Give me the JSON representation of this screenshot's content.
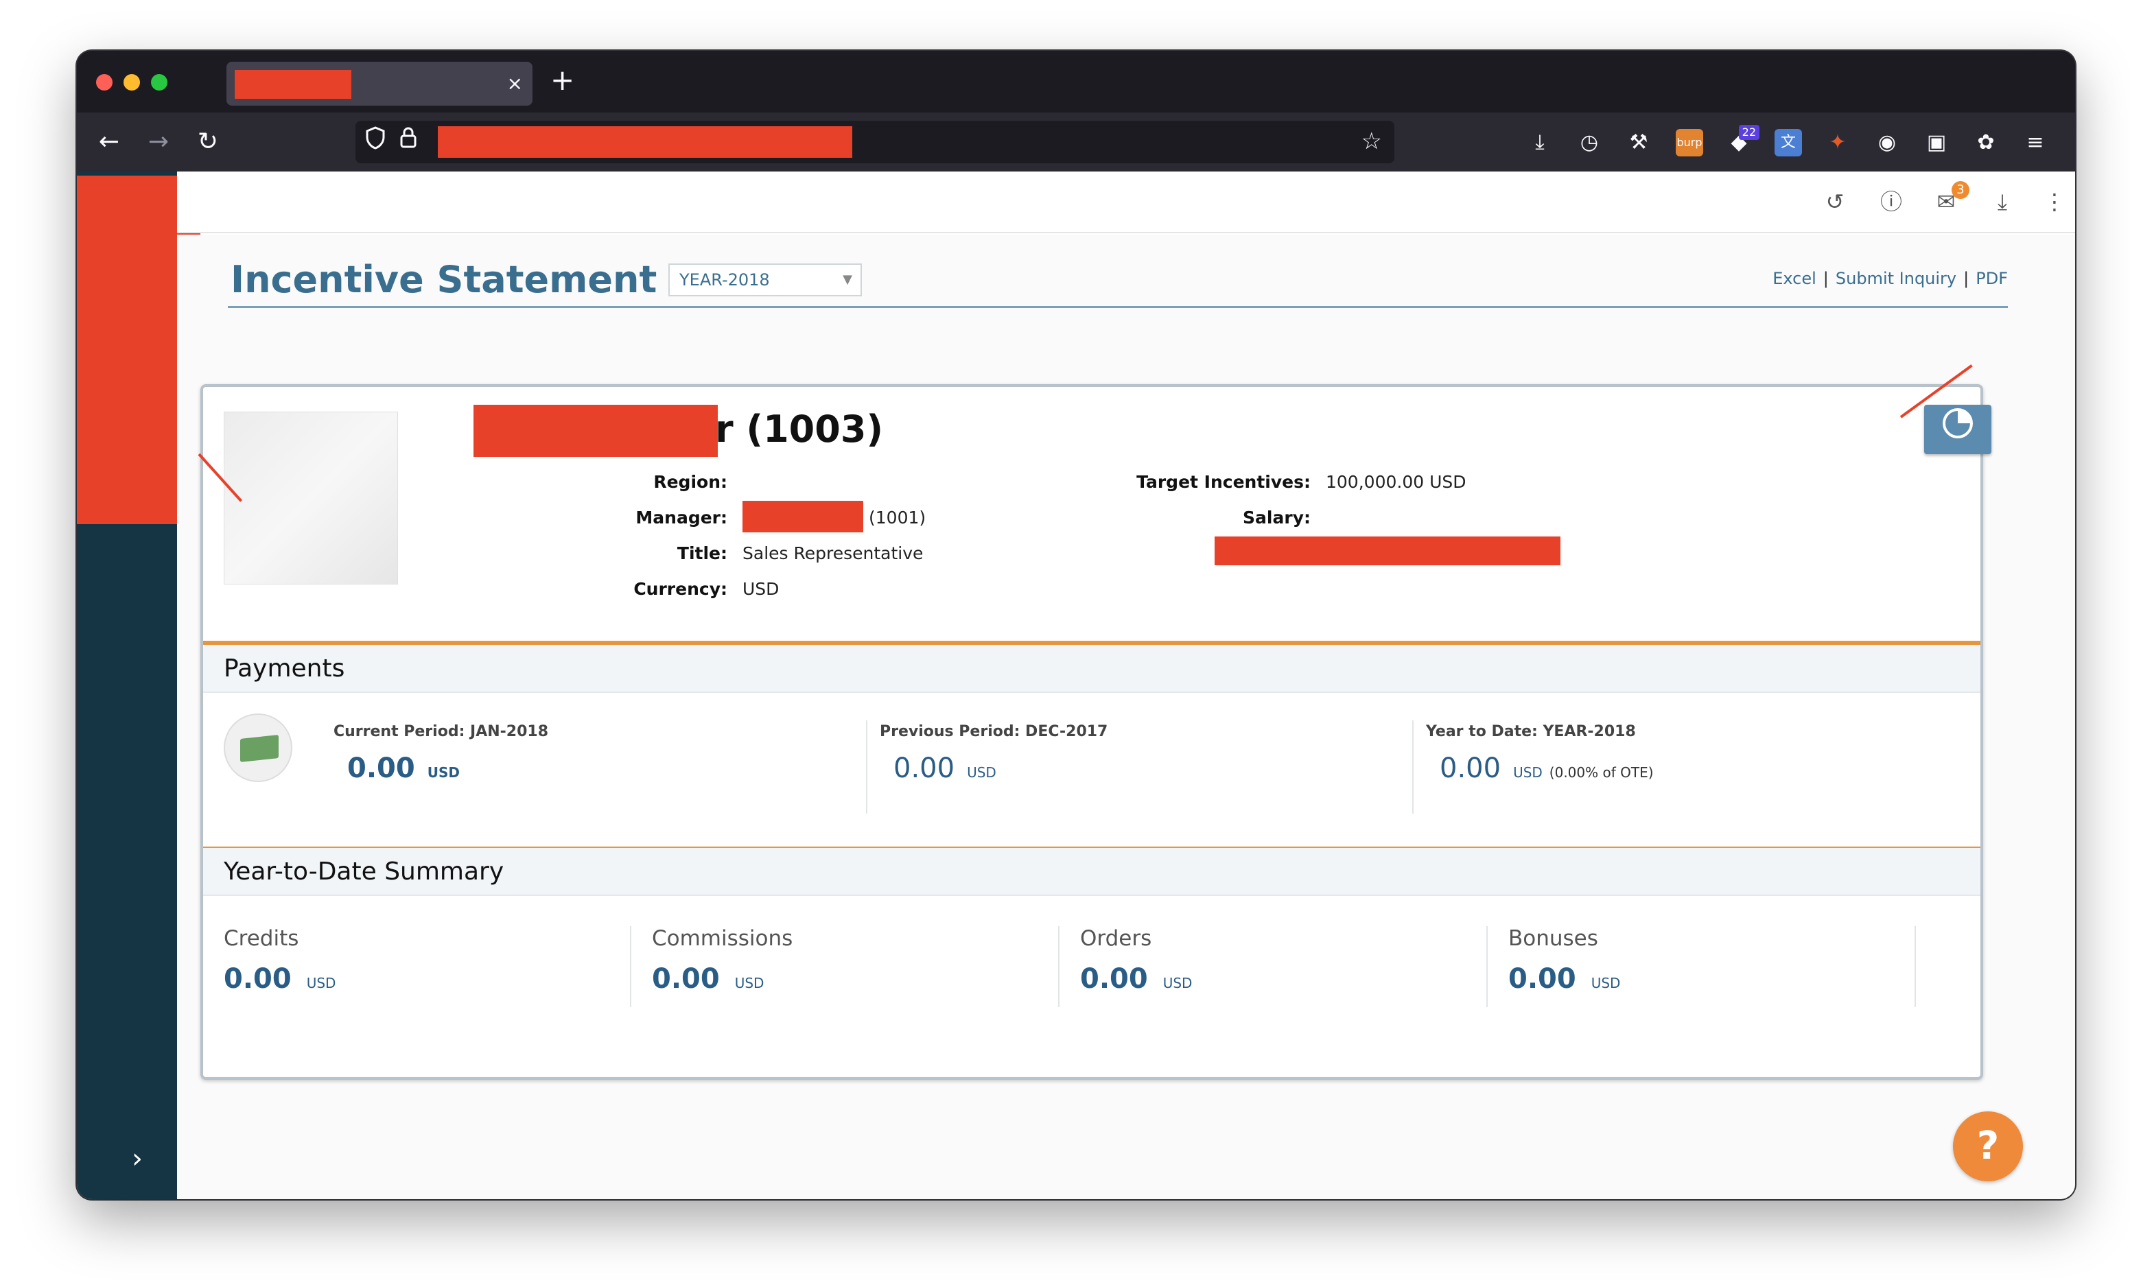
{
  "browser": {
    "new_tab": "+",
    "tab_close": "×",
    "nav": {
      "back": "←",
      "forward": "→",
      "reload": "↻"
    },
    "toolbar": {
      "extension_badge": "22"
    }
  },
  "app_header": {
    "mail_count": "3"
  },
  "page": {
    "title": "Incentive Statement",
    "year_select": "YEAR-2018",
    "actions": {
      "excel": "Excel",
      "submit_inquiry": "Submit Inquiry",
      "pdf": "PDF",
      "separator": "|"
    }
  },
  "profile": {
    "id_suffix": "r (1003)",
    "region_label": "Region:",
    "region_value": "",
    "manager_label": "Manager:",
    "manager_id": "(1001)",
    "title_label": "Title:",
    "title_value": "Sales Representative",
    "currency_label": "Currency:",
    "currency_value": "USD",
    "target_label": "Target Incentives:",
    "target_value": "100,000.00 USD",
    "salary_label": "Salary:"
  },
  "payments": {
    "heading": "Payments",
    "current": {
      "label": "Current Period: JAN-2018",
      "amount": "0.00",
      "currency": "USD"
    },
    "previous": {
      "label": "Previous Period: DEC-2017",
      "amount": "0.00",
      "currency": "USD"
    },
    "ytd": {
      "label": "Year to Date: YEAR-2018",
      "amount": "0.00",
      "currency": "USD",
      "note": "(0.00% of OTE)"
    }
  },
  "ytd_summary": {
    "heading": "Year-to-Date Summary",
    "items": [
      {
        "label": "Credits",
        "amount": "0.00",
        "currency": "USD"
      },
      {
        "label": "Commissions",
        "amount": "0.00",
        "currency": "USD"
      },
      {
        "label": "Orders",
        "amount": "0.00",
        "currency": "USD"
      },
      {
        "label": "Bonuses",
        "amount": "0.00",
        "currency": "USD"
      }
    ]
  },
  "help": {
    "label": "?"
  },
  "colors": {
    "accent": "#3a6e8f",
    "redaction": "#e8412a",
    "sidebar": "#163544",
    "orange": "#e7963d",
    "help": "#ef8a3a"
  }
}
